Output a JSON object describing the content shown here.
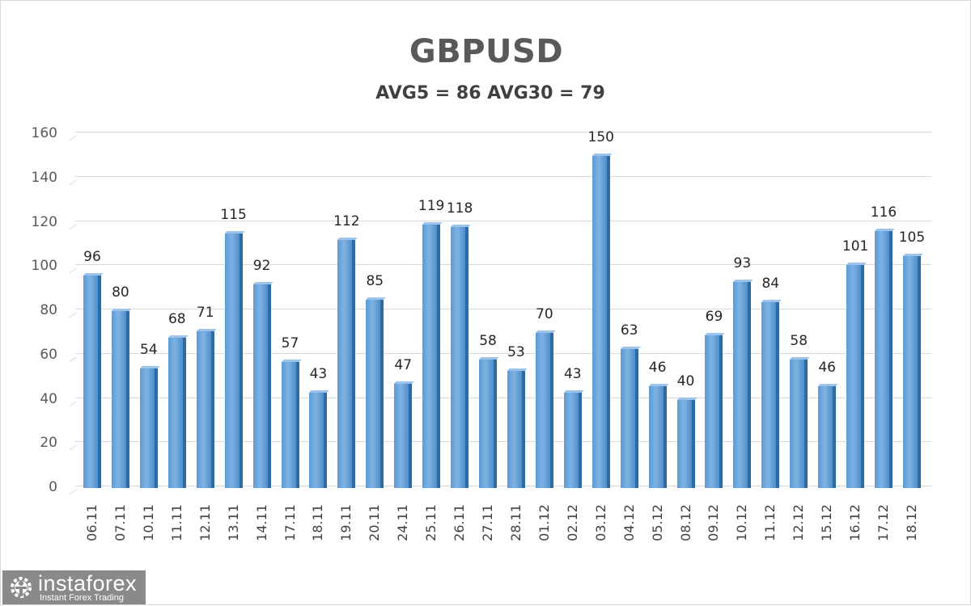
{
  "chart_data": {
    "type": "bar",
    "title": "GBPUSD",
    "subtitle": "AVG5 = 86 AVG30 = 79",
    "xlabel": "",
    "ylabel": "",
    "ylim": [
      0,
      160
    ],
    "yticks": [
      0,
      20,
      40,
      60,
      80,
      100,
      120,
      140,
      160
    ],
    "grid": true,
    "legend": "none",
    "data_labels": true,
    "categories": [
      "06.11",
      "07.11",
      "10.11",
      "11.11",
      "12.11",
      "13.11",
      "14.11",
      "17.11",
      "18.11",
      "19.11",
      "20.11",
      "24.11",
      "25.11",
      "26.11",
      "27.11",
      "28.11",
      "01.12",
      "02.12",
      "03.12",
      "04.12",
      "05.12",
      "08.12",
      "09.12",
      "10.12",
      "11.12",
      "12.12",
      "15.12",
      "16.12",
      "17.12",
      "18.12"
    ],
    "values": [
      96,
      80,
      54,
      68,
      71,
      115,
      92,
      57,
      43,
      112,
      85,
      47,
      119,
      118,
      58,
      53,
      70,
      43,
      150,
      63,
      46,
      40,
      69,
      93,
      84,
      58,
      46,
      101,
      116,
      105
    ],
    "bar_color": "#5b9bd5"
  },
  "watermark": {
    "name": "instaforex",
    "tagline": "Instant Forex Trading",
    "icon": "gear-person-icon"
  }
}
